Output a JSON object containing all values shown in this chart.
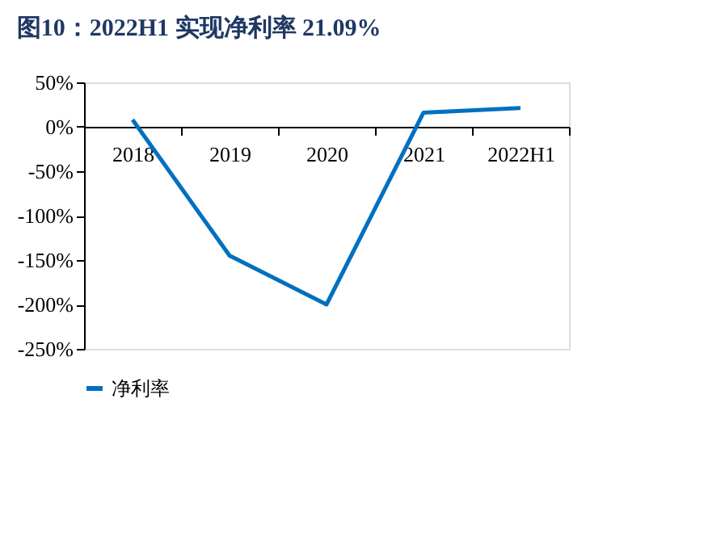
{
  "chart_data": {
    "type": "line",
    "title": "图10：2022H1 实现净利率 21.09%",
    "categories": [
      "2018",
      "2019",
      "2020",
      "2021",
      "2022H1"
    ],
    "series": [
      {
        "name": "净利率",
        "color": "#0070c0",
        "values": [
          8,
          -145,
          -200,
          16,
          21.09
        ]
      }
    ],
    "ylim": [
      -250,
      50
    ],
    "yticks": [
      {
        "value": 50,
        "label": "50%"
      },
      {
        "value": 0,
        "label": "0%"
      },
      {
        "value": -50,
        "label": "-50%"
      },
      {
        "value": -100,
        "label": "-100%"
      },
      {
        "value": -150,
        "label": "-150%"
      },
      {
        "value": -200,
        "label": "-200%"
      },
      {
        "value": -250,
        "label": "-250%"
      }
    ],
    "grid": false,
    "legend": "bottom",
    "marker": "none",
    "line_style": "solid"
  }
}
